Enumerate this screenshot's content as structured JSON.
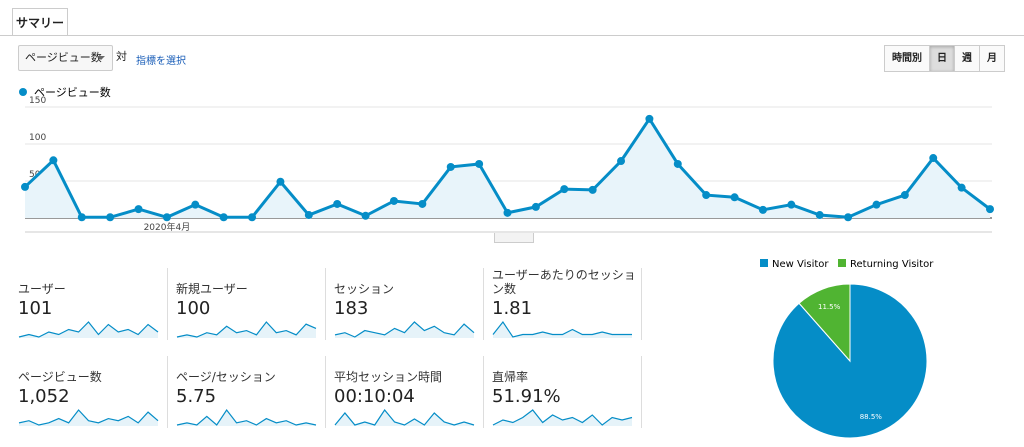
{
  "tabs": [
    "サマリー"
  ],
  "controls": {
    "metric": "ページビュー数",
    "versus": "対",
    "select_metric": "指標を選択",
    "intervals": [
      "時間別",
      "日",
      "週",
      "月"
    ],
    "active_interval": 1
  },
  "chart_data": [
    {
      "type": "line",
      "categories": [
        null,
        null,
        null,
        null,
        null,
        "2020年4月",
        null,
        null,
        null,
        null,
        null,
        null,
        null,
        null,
        null,
        null,
        null,
        null,
        null,
        null,
        null,
        null,
        null,
        null,
        null,
        null,
        null,
        null,
        null,
        null,
        null,
        null,
        null,
        null,
        null
      ],
      "series": [
        {
          "name": "ページビュー数",
          "color": "#058dc7",
          "values": [
            42,
            78,
            1,
            1,
            12,
            1,
            18,
            1,
            1,
            49,
            4,
            19,
            3,
            23,
            19,
            69,
            73,
            7,
            15,
            39,
            38,
            77,
            134,
            73,
            31,
            28,
            11,
            18,
            4,
            1,
            18,
            31,
            81,
            41,
            12
          ]
        }
      ],
      "ylim": [
        0,
        160
      ],
      "yticks": [
        50,
        100,
        150
      ],
      "grid": true
    },
    {
      "type": "pie",
      "legend": "top",
      "categories": [
        "New Visitor",
        "Returning Visitor"
      ],
      "values": [
        88.5,
        11.5
      ],
      "value_labels": [
        "88.5%",
        "11.5%"
      ],
      "colors": [
        "#058dc7",
        "#50b432"
      ]
    }
  ],
  "metrics": [
    {
      "label": "ユーザー",
      "value": "101",
      "trend": [
        3,
        4,
        3,
        5,
        4,
        6,
        5,
        9,
        4,
        8,
        5,
        6,
        4,
        8,
        5
      ]
    },
    {
      "label": "新規ユーザー",
      "value": "100",
      "trend": [
        2,
        3,
        2,
        4,
        3,
        7,
        4,
        5,
        3,
        9,
        4,
        5,
        3,
        8,
        6
      ]
    },
    {
      "label": "セッション",
      "value": "183",
      "trend": [
        3,
        4,
        2,
        5,
        4,
        3,
        6,
        4,
        9,
        5,
        7,
        4,
        3,
        8,
        4
      ]
    },
    {
      "label": "ユーザーあたりのセッション数",
      "value": "1.81",
      "trend": [
        4,
        9,
        3,
        4,
        4,
        5,
        4,
        4,
        6,
        4,
        4,
        5,
        4,
        4,
        4
      ]
    },
    {
      "label": "ページビュー数",
      "value": "1,052",
      "trend": [
        3,
        4,
        2,
        3,
        5,
        3,
        9,
        4,
        3,
        5,
        4,
        6,
        3,
        8,
        4
      ]
    },
    {
      "label": "ページ/セッション",
      "value": "5.75",
      "trend": [
        2,
        3,
        2,
        6,
        2,
        9,
        3,
        4,
        2,
        5,
        3,
        4,
        2,
        3,
        2
      ]
    },
    {
      "label": "平均セッション時間",
      "value": "00:10:04",
      "trend": [
        2,
        6,
        2,
        3,
        2,
        7,
        3,
        2,
        4,
        2,
        6,
        3,
        2,
        3,
        2
      ]
    },
    {
      "label": "直帰率",
      "value": "51.91%",
      "trend": [
        3,
        5,
        4,
        6,
        9,
        4,
        7,
        5,
        6,
        4,
        7,
        3,
        6,
        5,
        6
      ]
    }
  ]
}
